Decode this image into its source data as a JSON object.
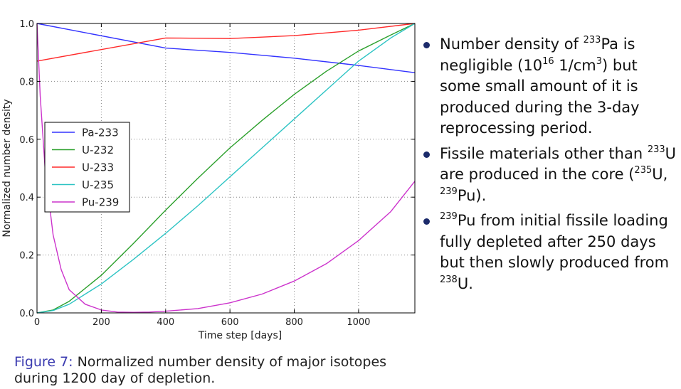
{
  "chart_data": {
    "type": "line",
    "xlabel": "Time step [days]",
    "ylabel": "Normalized number density",
    "xlim": [
      0,
      1175
    ],
    "ylim": [
      0,
      1.0
    ],
    "x_ticks": [
      "0",
      "200",
      "400",
      "600",
      "800",
      "1000"
    ],
    "y_ticks": [
      "0.0",
      "0.2",
      "0.4",
      "0.6",
      "0.8",
      "1.0"
    ],
    "grid": true,
    "legend_position": "center-left",
    "series": [
      {
        "name": "Pa-233",
        "color": "#3333ff",
        "x": [
          0,
          400,
          600,
          800,
          1000,
          1175
        ],
        "y": [
          1.0,
          0.915,
          0.9,
          0.88,
          0.855,
          0.83
        ]
      },
      {
        "name": "U-232",
        "color": "#2ca02c",
        "x": [
          0,
          50,
          100,
          200,
          300,
          400,
          500,
          600,
          700,
          800,
          900,
          1000,
          1100,
          1175
        ],
        "y": [
          0.0,
          0.01,
          0.04,
          0.13,
          0.24,
          0.355,
          0.465,
          0.57,
          0.665,
          0.755,
          0.835,
          0.905,
          0.96,
          1.0
        ]
      },
      {
        "name": "U-233",
        "color": "#ff2a2a",
        "x": [
          0,
          400,
          600,
          800,
          1000,
          1175
        ],
        "y": [
          0.87,
          0.95,
          0.948,
          0.958,
          0.977,
          1.0
        ]
      },
      {
        "name": "U-235",
        "color": "#2ec4c4",
        "x": [
          0,
          50,
          100,
          200,
          300,
          400,
          500,
          600,
          700,
          800,
          900,
          1000,
          1100,
          1175
        ],
        "y": [
          0.0,
          0.008,
          0.03,
          0.1,
          0.185,
          0.275,
          0.37,
          0.47,
          0.57,
          0.67,
          0.77,
          0.87,
          0.95,
          1.0
        ]
      },
      {
        "name": "Pu-239",
        "color": "#cc33cc",
        "x": [
          0,
          10,
          25,
          50,
          75,
          100,
          150,
          200,
          250,
          300,
          350,
          400,
          500,
          600,
          700,
          800,
          900,
          1000,
          1100,
          1175
        ],
        "y": [
          1.0,
          0.75,
          0.5,
          0.27,
          0.15,
          0.08,
          0.03,
          0.01,
          0.003,
          0.002,
          0.003,
          0.006,
          0.015,
          0.035,
          0.065,
          0.11,
          0.17,
          0.25,
          0.35,
          0.455
        ]
      }
    ]
  },
  "caption": {
    "label": "Figure 7:",
    "text": "Normalized number density of major isotopes during 1200 day of depletion."
  },
  "bullets": [
    {
      "parts": [
        {
          "t": "Number density of "
        },
        {
          "sup": "233"
        },
        {
          "t": "Pa is negligible (10"
        },
        {
          "sup": "16"
        },
        {
          "t": " 1/cm"
        },
        {
          "sup": "3"
        },
        {
          "t": ") but some small amount of it is produced during the 3-day reprocessing period."
        }
      ]
    },
    {
      "parts": [
        {
          "t": "Fissile materials other than "
        },
        {
          "sup": "233"
        },
        {
          "t": "U are produced in the core ("
        },
        {
          "sup": "235"
        },
        {
          "t": "U, "
        },
        {
          "sup": "239"
        },
        {
          "t": "Pu)."
        }
      ]
    },
    {
      "parts": [
        {
          "sup": "239"
        },
        {
          "t": "Pu from initial fissile loading fully depleted after 250 days but then slowly produced from "
        },
        {
          "sup": "238"
        },
        {
          "t": "U."
        }
      ]
    }
  ]
}
